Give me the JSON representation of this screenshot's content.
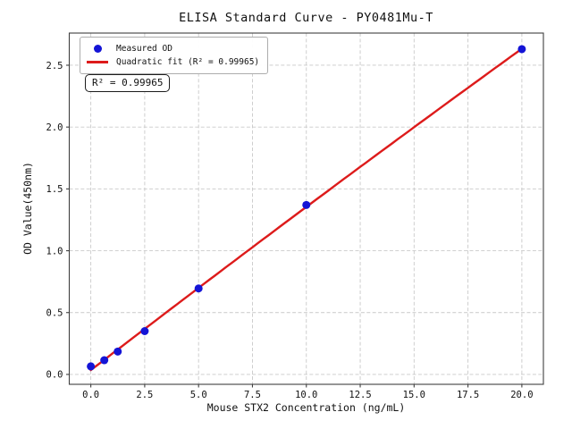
{
  "chart_data": {
    "type": "scatter",
    "title": "ELISA Standard Curve - PY0481Mu-T",
    "xlabel": "Mouse STX2 Concentration (ng/mL)",
    "ylabel": "OD Value(450nm)",
    "x": [
      0,
      0.625,
      1.25,
      2.5,
      5,
      10,
      20
    ],
    "series": [
      {
        "name": "Measured OD",
        "type": "scatter",
        "marker": "circle",
        "color": "#1414d6",
        "values": [
          0.065,
          0.115,
          0.185,
          0.35,
          0.695,
          1.37,
          2.63
        ]
      },
      {
        "name": "Quadratic fit (R² = 0.99965)",
        "type": "quadratic_fit",
        "color": "#dd1b1b",
        "fit_of": "Measured OD",
        "r_squared": 0.99965,
        "x_range": [
          0,
          20
        ]
      }
    ],
    "xlim": [
      -1,
      21
    ],
    "ylim": [
      -0.08,
      2.76
    ],
    "xticks": [
      0,
      2.5,
      5,
      7.5,
      10,
      12.5,
      15,
      17.5,
      20
    ],
    "xtick_labels": [
      "0.0",
      "2.5",
      "5.0",
      "7.5",
      "10.0",
      "12.5",
      "15.0",
      "17.5",
      "20.0"
    ],
    "yticks": [
      0,
      0.5,
      1,
      1.5,
      2,
      2.5
    ],
    "ytick_labels": [
      "0.0",
      "0.5",
      "1.0",
      "1.5",
      "2.0",
      "2.5"
    ],
    "grid": "dashed both axes",
    "grid_color": "#c9c9c9",
    "legend_position": "upper left",
    "annotation": "R² = 0.99965"
  }
}
